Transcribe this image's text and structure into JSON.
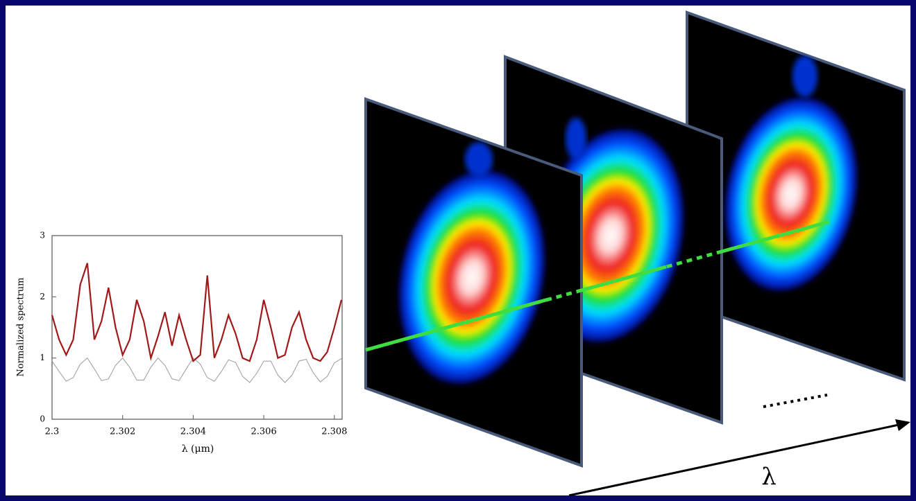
{
  "chart_data": {
    "type": "line",
    "xlabel": "λ (μm)",
    "ylabel": "Normalized spectrum",
    "x": [
      2.3,
      2.3002,
      2.3004,
      2.3006,
      2.3008,
      2.301,
      2.3012,
      2.3014,
      2.3016,
      2.3018,
      2.302,
      2.3022,
      2.3024,
      2.3026,
      2.3028,
      2.303,
      2.3032,
      2.3034,
      2.3036,
      2.3038,
      2.304,
      2.3042,
      2.3044,
      2.3046,
      2.3048,
      2.305,
      2.3052,
      2.3054,
      2.3056,
      2.3058,
      2.306,
      2.3062,
      2.3064,
      2.3066,
      2.3068,
      2.307,
      2.3072,
      2.3074,
      2.3076,
      2.3078,
      2.308,
      2.3082
    ],
    "series": [
      {
        "color": "#a01818",
        "values": [
          1.7,
          1.3,
          1.05,
          1.3,
          2.2,
          2.55,
          1.3,
          1.6,
          2.15,
          1.5,
          1.05,
          1.3,
          1.95,
          1.6,
          1.0,
          1.35,
          1.75,
          1.2,
          1.7,
          1.3,
          0.95,
          1.05,
          2.35,
          1.0,
          1.3,
          1.7,
          1.4,
          1.0,
          0.95,
          1.3,
          1.95,
          1.5,
          1.0,
          1.05,
          1.5,
          1.75,
          1.3,
          1.0,
          0.95,
          1.1,
          1.5,
          1.95
        ]
      },
      {
        "color": "#9a9a9a",
        "values": [
          0.95,
          0.78,
          0.62,
          0.68,
          0.9,
          1.0,
          0.82,
          0.63,
          0.66,
          0.88,
          1.0,
          0.85,
          0.64,
          0.64,
          0.85,
          1.0,
          0.88,
          0.66,
          0.63,
          0.82,
          1.0,
          0.9,
          0.68,
          0.62,
          0.78,
          0.97,
          0.93,
          0.7,
          0.6,
          0.75,
          0.95,
          0.95,
          0.72,
          0.6,
          0.72,
          0.95,
          0.98,
          0.76,
          0.61,
          0.7,
          0.92,
          0.99
        ]
      }
    ],
    "xlim": [
      2.3,
      2.30822
    ],
    "xticks": [
      2.3,
      2.302,
      2.304,
      2.306,
      2.308
    ],
    "ylim": [
      0,
      3
    ],
    "yticks": [
      0,
      1,
      2,
      3
    ]
  },
  "diagram": {
    "wavelength_label": "λ"
  }
}
